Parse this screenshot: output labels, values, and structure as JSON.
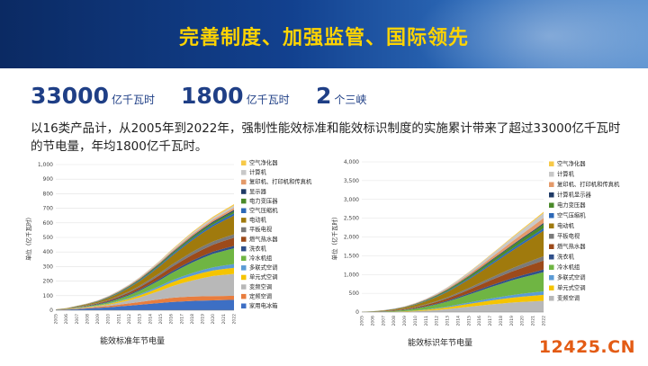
{
  "header": {
    "title": "完善制度、加强监管、国际领先"
  },
  "stats": [
    {
      "value": "33000",
      "unit": "亿千瓦时"
    },
    {
      "value": "1800",
      "unit": "亿千瓦时"
    },
    {
      "value": "2",
      "unit": "个三峡"
    }
  ],
  "description": "以16类产品计，从2005年到2022年，强制性能效标准和能效标识制度的实施累计带来了超过33000亿千瓦时的节电量，年均1800亿千瓦时。",
  "watermark": "12425.CN",
  "colors": {
    "banner": "#12418f",
    "title": "#ffd400",
    "stat": "#1f3f86"
  },
  "chart_data": [
    {
      "type": "area",
      "xlabel": "能效标准年节电量",
      "ylabel": "单位（亿千瓦时）",
      "ylim": [
        0,
        1000
      ],
      "yticks": [
        "0",
        "100",
        "200",
        "300",
        "400",
        "500",
        "600",
        "700",
        "800",
        "900",
        "1,000"
      ],
      "x": [
        "2005",
        "2006",
        "2007",
        "2008",
        "2009",
        "2010",
        "2011",
        "2012",
        "2013",
        "2014",
        "2015",
        "2016",
        "2017",
        "2018",
        "2019",
        "2020",
        "2021",
        "2022"
      ],
      "legend_position": "right",
      "series": [
        {
          "name": "家用电冰箱",
          "color": "#3d6fc4",
          "values": [
            2,
            5,
            8,
            12,
            16,
            20,
            26,
            32,
            38,
            44,
            50,
            56,
            60,
            64,
            66,
            68,
            70,
            72
          ]
        },
        {
          "name": "定频空调",
          "color": "#e87d3e",
          "values": [
            1,
            2,
            3,
            5,
            7,
            9,
            12,
            15,
            18,
            22,
            26,
            29,
            30,
            30,
            30,
            29,
            28,
            27
          ]
        },
        {
          "name": "变频空调",
          "color": "#b8b8b8",
          "values": [
            0,
            0,
            1,
            2,
            4,
            8,
            14,
            22,
            32,
            45,
            60,
            78,
            95,
            110,
            125,
            138,
            145,
            150
          ]
        },
        {
          "name": "单元式空调",
          "color": "#f5c400",
          "values": [
            0,
            1,
            2,
            3,
            4,
            6,
            8,
            10,
            14,
            18,
            22,
            26,
            30,
            33,
            36,
            38,
            40,
            42
          ]
        },
        {
          "name": "多联式空调",
          "color": "#5b9bd5",
          "values": [
            0,
            0,
            1,
            1,
            2,
            3,
            4,
            6,
            8,
            10,
            12,
            14,
            16,
            18,
            20,
            22,
            24,
            26
          ]
        },
        {
          "name": "冷水机组",
          "color": "#6fb543",
          "values": [
            1,
            2,
            3,
            4,
            6,
            9,
            13,
            18,
            24,
            32,
            40,
            50,
            60,
            72,
            82,
            92,
            100,
            108
          ]
        },
        {
          "name": "洗衣机",
          "color": "#2f4f8a",
          "values": [
            1,
            1,
            2,
            3,
            4,
            5,
            6,
            7,
            8,
            9,
            10,
            11,
            12,
            13,
            14,
            15,
            16,
            17
          ]
        },
        {
          "name": "燃气热水器",
          "color": "#9c4a1a",
          "values": [
            0,
            1,
            2,
            3,
            4,
            6,
            9,
            12,
            16,
            20,
            25,
            30,
            35,
            40,
            44,
            48,
            52,
            56
          ]
        },
        {
          "name": "平板电视",
          "color": "#7a7a7a",
          "values": [
            0,
            0,
            1,
            2,
            3,
            4,
            6,
            8,
            10,
            12,
            14,
            16,
            18,
            20,
            21,
            22,
            23,
            24
          ]
        },
        {
          "name": "电动机",
          "color": "#a07a0d",
          "values": [
            1,
            2,
            4,
            6,
            9,
            13,
            18,
            24,
            31,
            39,
            48,
            58,
            69,
            80,
            92,
            104,
            116,
            128
          ]
        },
        {
          "name": "空气压缩机",
          "color": "#2c68b7",
          "values": [
            0,
            0,
            1,
            1,
            2,
            3,
            4,
            5,
            6,
            7,
            8,
            9,
            10,
            11,
            12,
            13,
            14,
            15
          ]
        },
        {
          "name": "电力变压器",
          "color": "#4a8a2a",
          "values": [
            0,
            0,
            1,
            1,
            2,
            3,
            4,
            5,
            6,
            7,
            8,
            9,
            10,
            11,
            12,
            13,
            14,
            15
          ]
        },
        {
          "name": "显示器",
          "color": "#1f3a66",
          "values": [
            0,
            0,
            0,
            1,
            1,
            2,
            2,
            3,
            3,
            4,
            4,
            5,
            5,
            6,
            6,
            7,
            7,
            8
          ]
        },
        {
          "name": "复印机、打印机和传真机",
          "color": "#e49a6a",
          "values": [
            0,
            1,
            1,
            2,
            2,
            3,
            4,
            5,
            6,
            7,
            8,
            9,
            10,
            11,
            12,
            13,
            14,
            15
          ]
        },
        {
          "name": "计算机",
          "color": "#c8c8c8",
          "values": [
            0,
            0,
            1,
            1,
            2,
            3,
            4,
            5,
            6,
            7,
            8,
            9,
            10,
            11,
            12,
            13,
            14,
            15
          ]
        },
        {
          "name": "空气净化器",
          "color": "#f7c948",
          "values": [
            0,
            0,
            0,
            0,
            0,
            0,
            0,
            0,
            1,
            2,
            3,
            4,
            5,
            6,
            7,
            8,
            9,
            10
          ]
        }
      ]
    },
    {
      "type": "area",
      "xlabel": "能效标识年节电量",
      "ylabel": "单位（亿千瓦时）",
      "ylim": [
        0,
        4000
      ],
      "yticks": [
        "0",
        "500",
        "1,000",
        "1,500",
        "2,000",
        "2,500",
        "3,000",
        "3,500",
        "4,000"
      ],
      "x": [
        "2005",
        "2006",
        "2007",
        "2008",
        "2009",
        "2010",
        "2011",
        "2012",
        "2013",
        "2014",
        "2015",
        "2016",
        "2017",
        "2018",
        "2019",
        "2020",
        "2021",
        "2022"
      ],
      "legend_position": "right",
      "series": [
        {
          "name": "变频空调",
          "color": "#b8b8b8",
          "values": [
            0,
            0,
            2,
            5,
            10,
            20,
            35,
            55,
            80,
            110,
            140,
            170,
            200,
            225,
            250,
            270,
            285,
            300
          ]
        },
        {
          "name": "单元式空调",
          "color": "#f5c400",
          "values": [
            0,
            1,
            3,
            6,
            10,
            16,
            24,
            34,
            46,
            60,
            75,
            90,
            105,
            118,
            130,
            140,
            150,
            158
          ]
        },
        {
          "name": "多联式空调",
          "color": "#5b9bd5",
          "values": [
            0,
            0,
            1,
            2,
            4,
            7,
            11,
            16,
            22,
            30,
            38,
            46,
            54,
            62,
            70,
            78,
            86,
            94
          ]
        },
        {
          "name": "冷水机组",
          "color": "#6fb543",
          "values": [
            2,
            5,
            10,
            18,
            30,
            48,
            70,
            98,
            130,
            168,
            210,
            255,
            300,
            345,
            390,
            430,
            470,
            510
          ]
        },
        {
          "name": "洗衣机",
          "color": "#2f4f8a",
          "values": [
            1,
            2,
            4,
            6,
            9,
            12,
            16,
            20,
            25,
            30,
            35,
            40,
            45,
            50,
            55,
            60,
            65,
            70
          ]
        },
        {
          "name": "燃气热水器",
          "color": "#9c4a1a",
          "values": [
            1,
            3,
            6,
            10,
            16,
            24,
            34,
            46,
            60,
            76,
            94,
            114,
            136,
            158,
            180,
            200,
            220,
            240
          ]
        },
        {
          "name": "平板电视",
          "color": "#7a7a7a",
          "values": [
            0,
            1,
            2,
            4,
            7,
            11,
            16,
            22,
            29,
            37,
            46,
            55,
            65,
            75,
            85,
            95,
            105,
            115
          ]
        },
        {
          "name": "电动机",
          "color": "#a07a0d",
          "values": [
            2,
            6,
            12,
            22,
            36,
            55,
            80,
            110,
            145,
            185,
            230,
            280,
            335,
            395,
            460,
            530,
            600,
            680
          ]
        },
        {
          "name": "空气压缩机",
          "color": "#2c68b7",
          "values": [
            0,
            1,
            2,
            4,
            6,
            9,
            12,
            16,
            20,
            25,
            30,
            35,
            40,
            45,
            50,
            55,
            60,
            65
          ]
        },
        {
          "name": "电力变压器",
          "color": "#4a8a2a",
          "values": [
            0,
            1,
            3,
            5,
            8,
            12,
            17,
            23,
            30,
            38,
            47,
            56,
            65,
            74,
            83,
            92,
            101,
            110
          ]
        },
        {
          "name": "计算机显示器",
          "color": "#1f3a66",
          "values": [
            0,
            0,
            1,
            2,
            3,
            5,
            7,
            9,
            11,
            13,
            15,
            17,
            19,
            21,
            23,
            25,
            27,
            29
          ]
        },
        {
          "name": "复印机、打印机和传真机",
          "color": "#e49a6a",
          "values": [
            0,
            1,
            2,
            4,
            7,
            11,
            16,
            22,
            29,
            37,
            46,
            56,
            67,
            79,
            92,
            106,
            120,
            134
          ]
        },
        {
          "name": "计算机",
          "color": "#c8c8c8",
          "values": [
            0,
            1,
            2,
            4,
            7,
            11,
            16,
            23,
            31,
            40,
            50,
            60,
            71,
            82,
            94,
            106,
            118,
            130
          ]
        },
        {
          "name": "空气净化器",
          "color": "#f7c948",
          "values": [
            0,
            0,
            0,
            0,
            0,
            0,
            0,
            1,
            3,
            6,
            9,
            12,
            16,
            20,
            24,
            28,
            32,
            36
          ]
        }
      ]
    }
  ]
}
